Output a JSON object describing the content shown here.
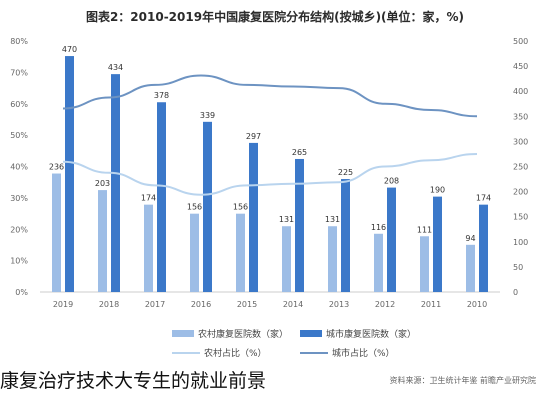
{
  "title": "图表2：2010-2019年中国康复医院分布结构(按城乡)(单位：家，%)",
  "caption": "康复治疗技术大专生的就业前景",
  "source": "资料来源：卫生统计年鉴 前瞻产业研究院",
  "colors": {
    "city_bar": "#3b78c9",
    "rural_bar": "#9dbde6",
    "city_line": "#6d93c2",
    "rural_line": "#b9d4ee",
    "grid": "#e6e6e6",
    "axis_text": "#666666"
  },
  "chart_data": {
    "type": "bar",
    "categories": [
      "2019",
      "2018",
      "2017",
      "2016",
      "2015",
      "2014",
      "2013",
      "2012",
      "2011",
      "2010"
    ],
    "series": [
      {
        "name": "农村康复医院数（家）",
        "type": "bar",
        "axis": "right",
        "values": [
          236,
          203,
          174,
          156,
          156,
          131,
          131,
          116,
          111,
          94
        ]
      },
      {
        "name": "城市康复医院数（家）",
        "type": "bar",
        "axis": "right",
        "values": [
          470,
          434,
          378,
          339,
          297,
          265,
          225,
          208,
          190,
          174
        ]
      },
      {
        "name": "农村占比（%）",
        "type": "line",
        "axis": "left",
        "values": [
          41.5,
          38,
          34,
          31,
          34,
          34.5,
          35,
          40,
          42,
          44
        ]
      },
      {
        "name": "城市占比（%）",
        "type": "line",
        "axis": "left",
        "values": [
          58.5,
          62,
          66,
          69,
          66,
          65.5,
          65,
          60,
          58,
          56
        ]
      }
    ],
    "left_axis": {
      "ticks": [
        "0%",
        "10%",
        "20%",
        "30%",
        "40%",
        "50%",
        "60%",
        "70%",
        "80%"
      ],
      "ylim": [
        0,
        80
      ]
    },
    "right_axis": {
      "ticks": [
        "0",
        "50",
        "100",
        "150",
        "200",
        "250",
        "300",
        "350",
        "400",
        "450",
        "500"
      ],
      "ylim": [
        0,
        500
      ]
    },
    "grid": false,
    "legend_position": "bottom"
  }
}
